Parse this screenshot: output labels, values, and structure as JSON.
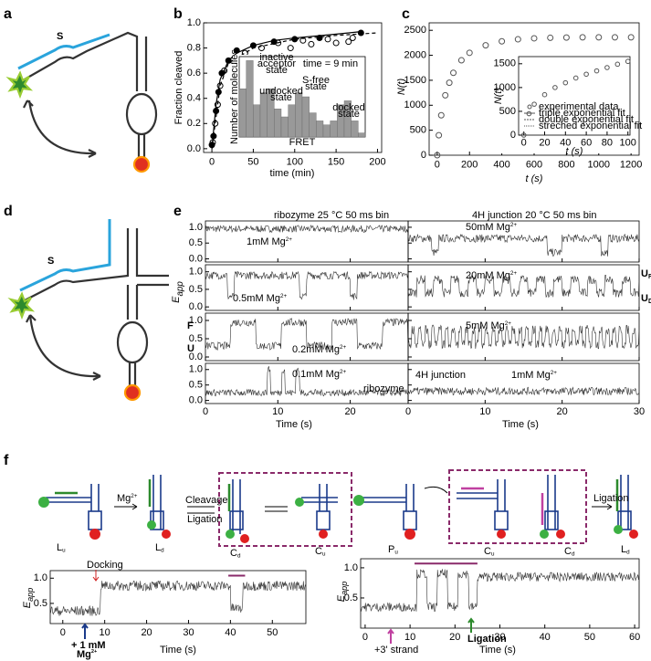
{
  "panel_labels": [
    "a",
    "b",
    "c",
    "d",
    "e",
    "f"
  ],
  "a": {
    "strand_label": "S"
  },
  "d": {
    "strand_label": "S"
  },
  "chart_data": [
    {
      "type": "scatter",
      "xlabel": "time (min)",
      "ylabel": "Fraction cleaved",
      "xlim": [
        -10,
        205
      ],
      "ylim": [
        -0.03,
        1.0
      ],
      "xticks": [
        0,
        50,
        100,
        150,
        200
      ],
      "yticks": [
        {
          "value": 0,
          "label": "0.0"
        },
        {
          "value": 0.2,
          "label": "0.2"
        },
        {
          "value": 0.4,
          "label": "0.4"
        },
        {
          "value": 0.6,
          "label": "0.6"
        },
        {
          "value": 0.8,
          "label": "0.8"
        },
        {
          "value": 1.0,
          "label": "1.0"
        }
      ],
      "series": [
        {
          "style": "filled",
          "color": "#000000",
          "x": [
            0,
            2,
            5,
            8,
            12,
            20,
            30,
            50,
            75,
            100,
            130,
            180
          ],
          "values": [
            0.03,
            0.1,
            0.3,
            0.45,
            0.6,
            0.7,
            0.78,
            0.82,
            0.85,
            0.87,
            0.88,
            0.92
          ]
        },
        {
          "style": "open",
          "color": "#000000",
          "x": [
            1,
            4,
            7,
            10,
            15,
            25,
            40,
            60,
            80,
            95,
            110,
            120,
            140,
            150,
            165,
            170
          ],
          "values": [
            0.05,
            0.2,
            0.35,
            0.5,
            0.62,
            0.7,
            0.76,
            0.8,
            0.84,
            0.8,
            0.86,
            0.83,
            0.87,
            0.84,
            0.85,
            0.88
          ]
        },
        {
          "style": "solid",
          "color": "#000000",
          "x": [
            0,
            5,
            10,
            20,
            30,
            50,
            75,
            100,
            150,
            180
          ],
          "values": [
            0,
            0.35,
            0.55,
            0.7,
            0.76,
            0.82,
            0.86,
            0.88,
            0.91,
            0.93
          ]
        },
        {
          "style": "dashed",
          "color": "#000000",
          "x": [
            0,
            10,
            20,
            50,
            100,
            150,
            200
          ],
          "values": [
            0,
            0.5,
            0.68,
            0.8,
            0.87,
            0.9,
            0.92
          ]
        }
      ]
    },
    {
      "type": "scatter",
      "xlabel": "t (s)",
      "ylabel": "N(t)",
      "xlim": [
        -50,
        1250
      ],
      "ylim": [
        0,
        2650
      ],
      "xticks": [
        0,
        200,
        400,
        600,
        800,
        1000,
        1200
      ],
      "yticks": [
        0,
        500,
        1000,
        1500,
        2000,
        2500
      ],
      "series": [
        {
          "style": "open",
          "color": "#555555",
          "x": [
            0,
            10,
            25,
            50,
            75,
            100,
            150,
            200,
            300,
            400,
            500,
            600,
            700,
            800,
            900,
            1000,
            1100,
            1200
          ],
          "values": [
            0,
            400,
            800,
            1200,
            1450,
            1650,
            1900,
            2050,
            2200,
            2280,
            2320,
            2340,
            2350,
            2355,
            2360,
            2360,
            2360,
            2360
          ]
        }
      ]
    },
    {
      "type": "scatter",
      "xlabel": "t (s)",
      "ylabel": "N(t)",
      "xlim": [
        -5,
        102
      ],
      "ylim": [
        0,
        1650
      ],
      "xticks": [
        0,
        20,
        40,
        60,
        80,
        100
      ],
      "yticks": [
        0,
        500,
        1000,
        1500
      ],
      "legend": [
        "experimental data",
        "triple exponential fit",
        "double exponential fit",
        "streched exponential fit"
      ],
      "series": [
        {
          "style": "open",
          "color": "#555555",
          "x": [
            0,
            5,
            10,
            20,
            30,
            40,
            50,
            60,
            70,
            80,
            90,
            100
          ],
          "values": [
            0,
            450,
            650,
            850,
            1000,
            1100,
            1200,
            1280,
            1350,
            1420,
            1490,
            1550
          ]
        }
      ]
    },
    {
      "type": "histogram",
      "xlabel": "FRET",
      "ylabel": "Number of molecules",
      "xlim": [
        0,
        0.9
      ],
      "ylim": [
        0,
        100
      ],
      "color": "#999999",
      "bins": [
        0,
        0.05,
        0.1,
        0.15,
        0.2,
        0.25,
        0.3,
        0.35,
        0.4,
        0.45,
        0.5,
        0.55,
        0.6,
        0.65,
        0.7,
        0.75,
        0.8,
        0.85,
        0.9
      ],
      "values": [
        60,
        95,
        40,
        55,
        60,
        35,
        25,
        40,
        55,
        50,
        30,
        20,
        15,
        20,
        40,
        45,
        20,
        5
      ],
      "annotations": [
        "time = 9 min",
        "inactive",
        "acceptor",
        "state",
        "undocked",
        "state",
        "S-free",
        "state",
        "docked",
        "state"
      ]
    }
  ],
  "e": {
    "titles": [
      "ribozyme 25 °C 50 ms bin",
      "4H junction 20 °C 50 ms bin"
    ],
    "ylabel": "E",
    "ylabel_sub": "app",
    "xlabel": "Time (s)",
    "ylim": [
      -0.1,
      1.2
    ],
    "yticks": [
      {
        "value": 0,
        "label": "0.0"
      },
      {
        "value": 0.5,
        "label": "0.5"
      },
      {
        "value": 1.0,
        "label": "1.0"
      }
    ],
    "left_xlim": [
      0,
      28
    ],
    "left_xticks": [
      0,
      10,
      20
    ],
    "right_xlim": [
      0,
      30
    ],
    "right_xticks": [
      0,
      10,
      20,
      30
    ],
    "left_rows": [
      {
        "text": "1mM Mg",
        "sup": "2+"
      },
      {
        "text": "0.5mM Mg",
        "sup": "2+"
      },
      {
        "text": "0.2mM Mg",
        "sup": "2+"
      },
      {
        "text": "0.1mM Mg",
        "sup": "2+"
      }
    ],
    "right_rows": [
      {
        "text": "50mM Mg",
        "sup": "2+"
      },
      {
        "text": "20mM Mg",
        "sup": "2+"
      },
      {
        "text": "5mM Mg",
        "sup": "2+"
      },
      {
        "text": "1mM Mg",
        "sup": "2+"
      }
    ],
    "side_left": [
      "F",
      "U"
    ],
    "side_right": [
      {
        "main": "U",
        "sub": "F"
      },
      {
        "main": "U",
        "sub": "D"
      }
    ],
    "names": [
      "ribozyme",
      "4H junction"
    ]
  },
  "f": {
    "left_states": [
      {
        "main": "L",
        "sub": "u"
      },
      {
        "main": "L",
        "sub": "d"
      },
      {
        "main": "C",
        "sub": "d"
      },
      {
        "main": "C",
        "sub": "u"
      }
    ],
    "right_states": [
      {
        "main": "P",
        "sub": "u"
      },
      {
        "main": "C",
        "sub": "u"
      },
      {
        "main": "C",
        "sub": "d"
      },
      {
        "main": "L",
        "sub": "d"
      }
    ],
    "mg": {
      "text": "Mg",
      "sup": "2+"
    },
    "cleavage": "Cleavage",
    "ligation": "Ligation",
    "ligation_right": "Ligation",
    "ylabel": "E",
    "ylabel_sub": "app",
    "xlabel": "Time (s)",
    "left": {
      "xlim": [
        -3,
        58
      ],
      "xticks": [
        0,
        10,
        20,
        30,
        40,
        50
      ],
      "ylim": [
        0.1,
        1.15
      ],
      "yticks": [
        {
          "value": 0.5,
          "label": "0.5"
        },
        {
          "value": 1.0,
          "label": "1.0"
        }
      ],
      "docking": "Docking",
      "mg_add": "+ 1 mM",
      "mg_add2": {
        "text": "Mg",
        "sup": "2+"
      }
    },
    "right": {
      "xlim": [
        -1,
        61
      ],
      "xticks": [
        0,
        10,
        20,
        30,
        40,
        50,
        60
      ],
      "ylim": [
        0,
        1.15
      ],
      "yticks": [
        {
          "value": 0.5,
          "label": "0.5"
        },
        {
          "value": 1.0,
          "label": "1.0"
        }
      ],
      "strand": "+3' strand",
      "ligation": "Ligation"
    }
  }
}
